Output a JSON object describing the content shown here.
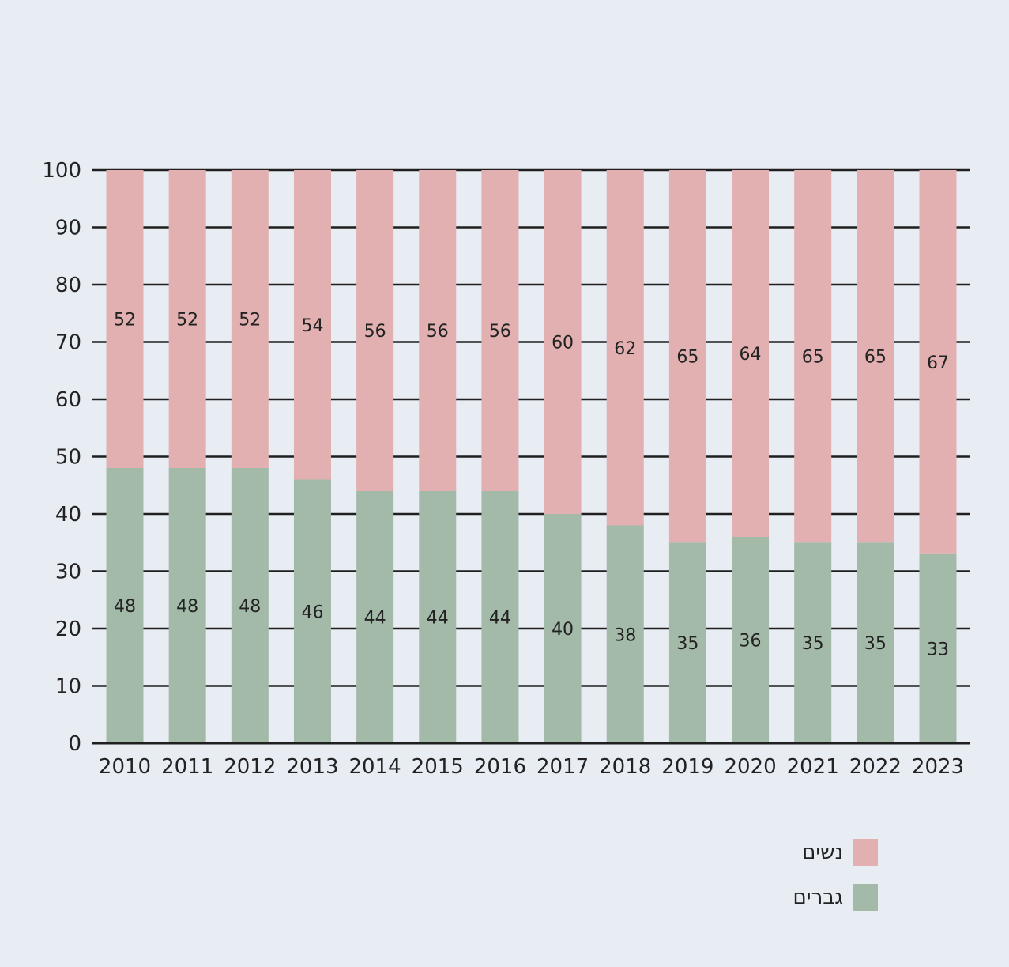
{
  "colors": {
    "background": "#e8ecf3",
    "gridline": "#1f1f1f"
  },
  "chart_data": {
    "type": "bar",
    "stacked": true,
    "categories": [
      "2010",
      "2011",
      "2012",
      "2013",
      "2014",
      "2015",
      "2016",
      "2017",
      "2018",
      "2019",
      "2020",
      "2021",
      "2022",
      "2023"
    ],
    "series": [
      {
        "name": "גברים",
        "color": "#a3baa8",
        "values": [
          48,
          48,
          48,
          46,
          44,
          44,
          44,
          40,
          38,
          35,
          36,
          35,
          35,
          33
        ]
      },
      {
        "name": "נשים",
        "color": "#e2b0b0",
        "values": [
          52,
          52,
          52,
          54,
          56,
          56,
          56,
          60,
          62,
          65,
          64,
          65,
          65,
          67
        ]
      }
    ],
    "yticks": [
      0,
      10,
      20,
      30,
      40,
      50,
      60,
      70,
      80,
      90,
      100
    ],
    "ylim": [
      0,
      100
    ],
    "grid": true,
    "legend_position": "bottom-right"
  }
}
